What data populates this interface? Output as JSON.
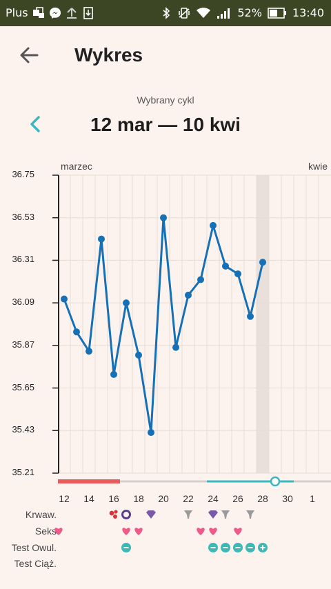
{
  "status_bar": {
    "carrier": "Plus",
    "battery": "52%",
    "time": "13:40"
  },
  "header": {
    "title": "Wykres",
    "back_icon": "arrow-left-icon"
  },
  "cycle": {
    "caption": "Wybrany cykl",
    "range": "12 mar — 10 kwi",
    "prev_icon": "chevron-left-icon"
  },
  "chart_data": {
    "type": "line",
    "months": [
      "marzec",
      "kwie"
    ],
    "x_ticks": [
      "12",
      "14",
      "16",
      "18",
      "20",
      "22",
      "24",
      "26",
      "28",
      "30",
      "1"
    ],
    "y_ticks": [
      "36.75",
      "36.53",
      "36.31",
      "36.09",
      "35.87",
      "35.65",
      "35.43",
      "35.21"
    ],
    "ylim": [
      35.21,
      36.75
    ],
    "series": [
      {
        "x": [
          12,
          13,
          14,
          15,
          16,
          17,
          18,
          19,
          20,
          21,
          22,
          23,
          24,
          25,
          26,
          27,
          28
        ],
        "values": [
          36.11,
          35.94,
          35.84,
          36.42,
          35.72,
          36.09,
          35.82,
          35.42,
          36.53,
          35.86,
          36.13,
          36.21,
          36.49,
          36.28,
          36.24,
          36.02,
          36.3
        ]
      }
    ],
    "highlight_day": 28,
    "line_color": "#1670b6",
    "grid": true
  },
  "timeline": {
    "period_bar": {
      "start_day": 11.5,
      "end_day": 16.5,
      "color": "#e95a5a"
    },
    "fertile_bar": {
      "start_day": 23.5,
      "end_day": 30.5,
      "color": "#3ab7bf",
      "marker_day": 29
    }
  },
  "symptom_rows": {
    "labels": [
      "Krwaw.",
      "Seks",
      "Test Owul.",
      "Test Ciąż."
    ],
    "krwaw": [
      {
        "day": 16,
        "icon": "blood-drops-icon",
        "color": "#d8353a"
      },
      {
        "day": 17,
        "icon": "ring-icon",
        "color": "#5a3e8a"
      },
      {
        "day": 19,
        "icon": "diamond-icon",
        "color": "#7a5aa8"
      },
      {
        "day": 22,
        "icon": "goblet-icon",
        "color": "#9a9a9a"
      },
      {
        "day": 24,
        "icon": "diamond-icon",
        "color": "#7a5aa8"
      },
      {
        "day": 25,
        "icon": "goblet-icon",
        "color": "#9a9a9a"
      },
      {
        "day": 27,
        "icon": "goblet-icon",
        "color": "#9a9a9a"
      }
    ],
    "seks": [
      11.55,
      17,
      18,
      23,
      24,
      26
    ],
    "heart_color": "#ee5b8a",
    "test_owul": [
      {
        "day": 17,
        "icon": "minus-circle-icon"
      },
      {
        "day": 24,
        "icon": "minus-circle-icon"
      },
      {
        "day": 25,
        "icon": "minus-circle-icon"
      },
      {
        "day": 26,
        "icon": "minus-circle-icon"
      },
      {
        "day": 27,
        "icon": "minus-circle-icon"
      },
      {
        "day": 28,
        "icon": "plus-circle-icon"
      }
    ],
    "test_color": "#3fb8b4"
  }
}
